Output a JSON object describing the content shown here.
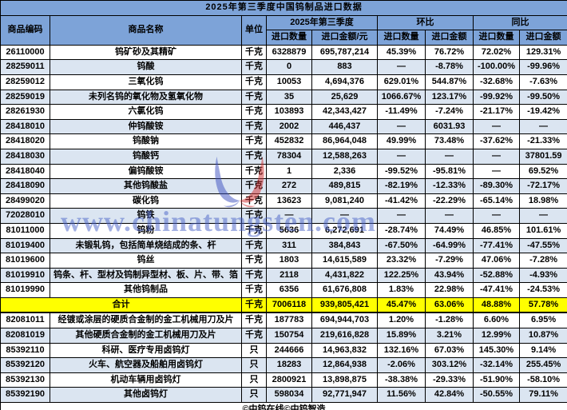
{
  "title": "2025年第三季度中国钨制品进口数据",
  "chart_data": {
    "type": "table",
    "title": "2025年第三季度中国钨制品进口数据",
    "header": {
      "code": "商品编码",
      "name": "商品名称",
      "unit": "单位",
      "groups": [
        {
          "label": "2025年第三季度",
          "sub": [
            "进口数量",
            "进口金额/元"
          ]
        },
        {
          "label": "环比",
          "sub": [
            "进口数量",
            "进口金额"
          ]
        },
        {
          "label": "同比",
          "sub": [
            "进口数量",
            "进口金额"
          ]
        }
      ]
    },
    "rows": [
      {
        "code": "26110000",
        "name": "钨矿砂及其精矿",
        "unit": "千克",
        "qty": "6328879",
        "amount": "695,787,214",
        "pct": [
          "45.39%",
          "76.72%",
          "72.02%",
          "129.31%"
        ]
      },
      {
        "code": "28259011",
        "name": "钨酸",
        "unit": "千克",
        "qty": "0",
        "amount": "883",
        "pct": [
          "—",
          "-8.78%",
          "-100.00%",
          "-99.96%"
        ]
      },
      {
        "code": "28259012",
        "name": "三氧化钨",
        "unit": "千克",
        "qty": "10053",
        "amount": "4,694,376",
        "pct": [
          "629.01%",
          "544.87%",
          "-32.68%",
          "-7.63%"
        ]
      },
      {
        "code": "28259019",
        "name": "未列名钨的氧化物及氢氧化物",
        "unit": "千克",
        "qty": "35",
        "amount": "25,629",
        "pct": [
          "1066.67%",
          "123.17%",
          "-99.92%",
          "-99.50%"
        ]
      },
      {
        "code": "28261930",
        "name": "六氯化钨",
        "unit": "千克",
        "qty": "103893",
        "amount": "42,343,427",
        "pct": [
          "-11.49%",
          "-7.24%",
          "-21.17%",
          "-19.42%"
        ]
      },
      {
        "code": "28418010",
        "name": "仲钨酸铵",
        "unit": "千克",
        "qty": "2002",
        "amount": "446,437",
        "pct": [
          "—",
          "6031.93",
          "—",
          "—"
        ]
      },
      {
        "code": "28418020",
        "name": "钨酸钠",
        "unit": "千克",
        "qty": "452832",
        "amount": "86,964,048",
        "pct": [
          "49.99%",
          "73.48%",
          "-37.62%",
          "-21.33%"
        ]
      },
      {
        "code": "28418030",
        "name": "钨酸钙",
        "unit": "千克",
        "qty": "78304",
        "amount": "12,588,263",
        "pct": [
          "—",
          "—",
          "—",
          "37801.59"
        ]
      },
      {
        "code": "28418040",
        "name": "偏钨酸铵",
        "unit": "千克",
        "qty": "1",
        "amount": "2,336",
        "pct": [
          "-99.52%",
          "-95.81%",
          "—",
          "69.52%"
        ]
      },
      {
        "code": "28418090",
        "name": "其他钨酸盐",
        "unit": "千克",
        "qty": "272",
        "amount": "489,815",
        "pct": [
          "-82.19%",
          "-12.33%",
          "-89.30%",
          "-72.17%"
        ]
      },
      {
        "code": "28499020",
        "name": "碳化钨",
        "unit": "千克",
        "qty": "13623",
        "amount": "9,081,240",
        "pct": [
          "-41.42%",
          "-22.29%",
          "-65.14%",
          "18.98%"
        ]
      },
      {
        "code": "72028010",
        "name": "钨铁",
        "unit": "千克",
        "qty": "—",
        "amount": "—",
        "pct": [
          "—",
          "—",
          "—",
          "—"
        ]
      },
      {
        "code": "81011000",
        "name": "钨粉",
        "unit": "千克",
        "qty": "5636",
        "amount": "6,272,691",
        "pct": [
          "-28.74%",
          "74.49%",
          "46.85%",
          "101.61%"
        ]
      },
      {
        "code": "81019400",
        "name": "未锻轧钨，包括简单烧结成的条、杆",
        "unit": "千克",
        "qty": "311",
        "amount": "384,843",
        "pct": [
          "-67.50%",
          "-64.99%",
          "-77.41%",
          "-47.55%"
        ]
      },
      {
        "code": "81019600",
        "name": "钨丝",
        "unit": "千克",
        "qty": "1803",
        "amount": "14,615,589",
        "pct": [
          "23.32%",
          "-7.29%",
          "47.06%",
          "-7.28%"
        ]
      },
      {
        "code": "81019910",
        "name": "钨条、杆、型材及钨制异型材、板、片、带、箔",
        "unit": "千克",
        "qty": "2118",
        "amount": "4,431,822",
        "pct": [
          "122.25%",
          "43.94%",
          "-52.88%",
          "-4.93%"
        ]
      },
      {
        "code": "81019990",
        "name": "其他钨制品",
        "unit": "千克",
        "qty": "6356",
        "amount": "61,676,808",
        "pct": [
          "1.83%",
          "22.98%",
          "-47.41%",
          "-24.53%"
        ]
      },
      {
        "total": true,
        "name": "合计",
        "unit": "千克",
        "qty": "7006118",
        "amount": "939,805,421",
        "pct": [
          "45.47%",
          "63.06%",
          "48.88%",
          "57.78%"
        ]
      },
      {
        "code": "82081011",
        "name": "经镀或涂层的硬质合金制的金工机械用刀及片",
        "unit": "千克",
        "qty": "187783",
        "amount": "694,944,703",
        "pct": [
          "1.20%",
          "-1.28%",
          "6.60%",
          "6.95%"
        ]
      },
      {
        "code": "82081019",
        "name": "其他硬质合金制的金工机械用刀及片",
        "unit": "千克",
        "qty": "150754",
        "amount": "219,616,828",
        "pct": [
          "15.89%",
          "3.21%",
          "12.99%",
          "10.87%"
        ]
      },
      {
        "code": "85392110",
        "name": "科研、医疗专用卤钨灯",
        "unit": "只",
        "qty": "244666",
        "amount": "14,963,832",
        "pct": [
          "132.16%",
          "67.03%",
          "145.30%",
          "9.14%"
        ]
      },
      {
        "code": "85392120",
        "name": "火车、航空器及船舶用卤钨灯",
        "unit": "只",
        "qty": "18283",
        "amount": "12,864,938",
        "pct": [
          "-2.06%",
          "303.12%",
          "-32.14%",
          "255.45%"
        ]
      },
      {
        "code": "85392130",
        "name": "机动车辆用卤钨灯",
        "unit": "只",
        "qty": "2800921",
        "amount": "13,898,875",
        "pct": [
          "-38.38%",
          "-29.33%",
          "-51.90%",
          "-58.10%"
        ]
      },
      {
        "code": "85392190",
        "name": "其他卤钨灯",
        "unit": "只",
        "qty": "598034",
        "amount": "92,771,947",
        "pct": [
          "11.56%",
          "42.84%",
          "-50.55%",
          "79.11%"
        ]
      }
    ]
  },
  "watermark": {
    "text": "www.chinatungsten.com"
  },
  "footer": {
    "copyright": "©中钨在线©中钨智造"
  },
  "colors": {
    "header_bg": "#7da3d8",
    "row_alt_bg": "#dbe5f1",
    "total_bg": "#ffff00",
    "positive": "#ff0000",
    "negative": "#00b050",
    "copyright_color": "#7f6000",
    "watermark_color": "#4a63c8"
  }
}
